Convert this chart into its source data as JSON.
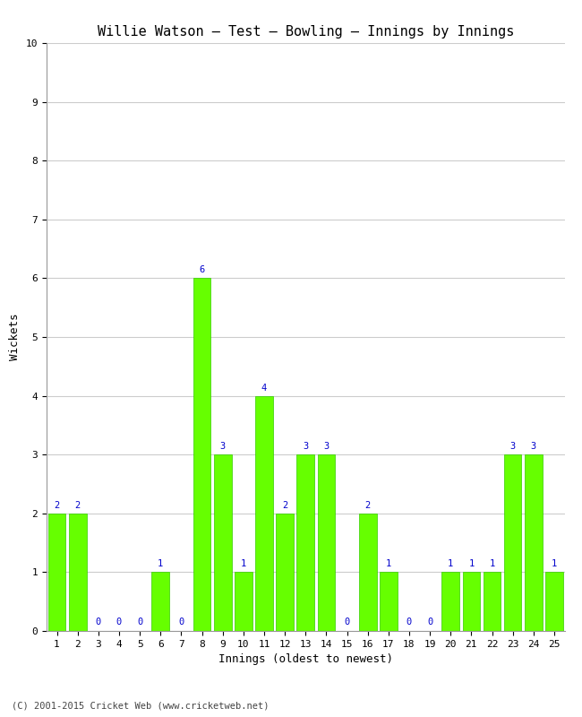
{
  "title": "Willie Watson – Test – Bowling – Innings by Innings",
  "xlabel": "Innings (oldest to newest)",
  "ylabel": "Wickets",
  "categories": [
    1,
    2,
    3,
    4,
    5,
    6,
    7,
    8,
    9,
    10,
    11,
    12,
    13,
    14,
    15,
    16,
    17,
    18,
    19,
    20,
    21,
    22,
    23,
    24,
    25
  ],
  "values": [
    2,
    2,
    0,
    0,
    0,
    1,
    0,
    6,
    3,
    1,
    4,
    2,
    3,
    3,
    0,
    2,
    1,
    0,
    0,
    1,
    1,
    1,
    3,
    3,
    1
  ],
  "bar_color": "#66ff00",
  "bar_edge_color": "#33cc00",
  "label_color": "#0000cc",
  "label_fontsize": 7.5,
  "title_fontsize": 11,
  "axis_label_fontsize": 9,
  "tick_fontsize": 8,
  "ylim": [
    0,
    10
  ],
  "yticks": [
    0,
    1,
    2,
    3,
    4,
    5,
    6,
    7,
    8,
    9,
    10
  ],
  "background_color": "#ffffff",
  "grid_color": "#cccccc",
  "footer_text": "(C) 2001-2015 Cricket Web (www.cricketweb.net)",
  "footer_fontsize": 7.5,
  "footer_color": "#444444"
}
